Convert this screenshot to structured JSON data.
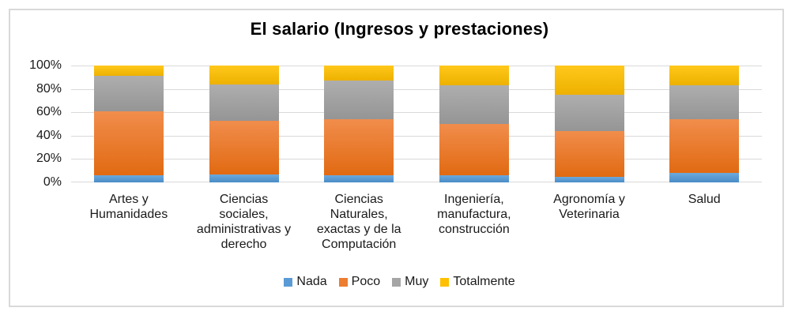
{
  "chart_data": {
    "type": "bar",
    "stacked": true,
    "percent_stacked": true,
    "title": "El salario (Ingresos y prestaciones)",
    "xlabel": "",
    "ylabel": "",
    "ylim": [
      0,
      100
    ],
    "grid": true,
    "legend_position": "bottom",
    "y_ticks": [
      "100%",
      "80%",
      "60%",
      "40%",
      "20%",
      "0%"
    ],
    "categories": [
      "Artes y\nHumanidades",
      "Ciencias\nsociales,\nadministrativas y\nderecho",
      "Ciencias\nNaturales,\nexactas y de la\nComputación",
      "Ingeniería,\nmanufactura,\nconstrucción",
      "Agronomía y\nVeterinaria",
      "Salud"
    ],
    "series": [
      {
        "name": "Nada",
        "color": "#5B9BD5",
        "color_top": "#6CA9DC",
        "color_bottom": "#4A8CC7",
        "values": [
          6,
          7,
          6,
          6,
          5,
          8
        ]
      },
      {
        "name": "Poco",
        "color": "#ED7D31",
        "color_top": "#F18D4C",
        "color_bottom": "#E16A12",
        "values": [
          55,
          46,
          48,
          44,
          39,
          46
        ]
      },
      {
        "name": "Muy",
        "color": "#A5A5A5",
        "color_top": "#AEAEAE",
        "color_bottom": "#959595",
        "values": [
          30,
          31,
          33,
          33,
          31,
          29
        ]
      },
      {
        "name": "Totalmente",
        "color": "#FFC000",
        "color_top": "#FFC81B",
        "color_bottom": "#EDB100",
        "values": [
          9,
          16,
          13,
          17,
          25,
          17
        ]
      }
    ]
  }
}
